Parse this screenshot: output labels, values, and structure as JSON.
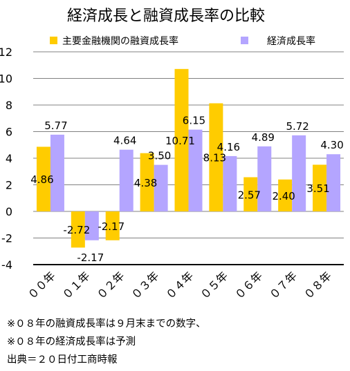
{
  "chart_data": {
    "type": "bar",
    "title": "経済成長と融資成長率の比較",
    "categories": [
      "００年",
      "０１年",
      "０２年",
      "０３年",
      "０４年",
      "０５年",
      "０６年",
      "０７年",
      "０８年"
    ],
    "series": [
      {
        "name": "主要金融機関の融資成長率",
        "values": [
          4.86,
          -2.72,
          -2.17,
          4.38,
          10.71,
          8.13,
          2.57,
          2.4,
          3.51
        ],
        "labels": [
          "4.86",
          "-2.72",
          "-2.17",
          "4.38",
          "10.71",
          "8.13",
          "2.57",
          "2.40",
          "3.51"
        ]
      },
      {
        "name": "経済成長率",
        "values": [
          5.77,
          -2.17,
          4.64,
          3.5,
          6.15,
          4.16,
          4.89,
          5.72,
          4.3
        ],
        "labels": [
          "5.77",
          "-2.17",
          "4.64",
          "3.50",
          "6.15",
          "4.16",
          "4.89",
          "5.72",
          "4.30"
        ]
      }
    ],
    "ylim": [
      -4,
      12
    ],
    "yticks": [
      "-4",
      "-2",
      "0",
      "2",
      "4",
      "6",
      "8",
      "10",
      "12"
    ],
    "grid": true,
    "legend": "top"
  },
  "colors": {
    "loan": "#ffcc00",
    "gdp": "#b4a5ff",
    "grid": "#808080"
  },
  "notes": [
    "※０８年の融資成長率は９月末までの数字、",
    "※０８年の経済成長率は予測",
    "出典＝２０日付工商時報"
  ]
}
